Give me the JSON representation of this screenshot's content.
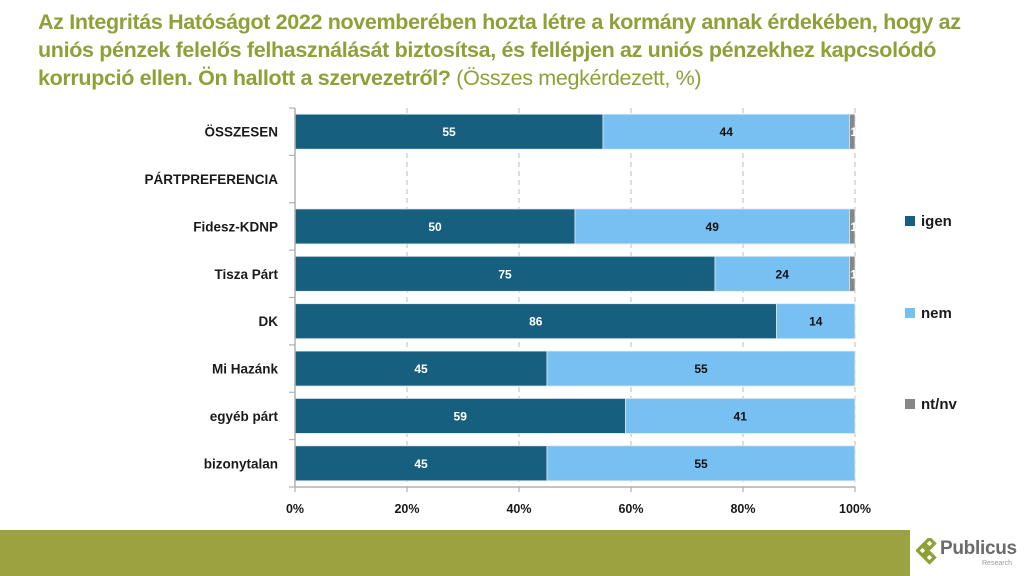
{
  "title": {
    "main": "Az Integritás Hatóságot 2022 novemberében hozta létre a kormány annak érdekében, hogy az uniós pénzek felelős felhasználását biztosítsa, és fellépjen az uniós pénzekhez kapcsolódó korrupció ellen. Ön hallott a szervezetről?",
    "subtitle": "(Összes megkérdezett, %)"
  },
  "colors": {
    "title": "#8fa037",
    "igen": "#175f7f",
    "nem": "#78c0f2",
    "ntnv": "#878787",
    "footer": "#9aa33f"
  },
  "chart_data": {
    "type": "bar",
    "orientation": "horizontal",
    "stacked": true,
    "title": "Az Integritás Hatóságot 2022 novemberében hozta létre a kormány annak érdekében, hogy az uniós pénzek felelős felhasználását biztosítsa, és fellépjen az uniós pénzekhez kapcsolódó korrupció ellen. Ön hallott a szervezetről? (Összes megkérdezett, %)",
    "categories": [
      "ÖSSZESEN",
      "PÁRTPREFERENCIA",
      "Fidesz-KDNP",
      "Tisza Párt",
      "DK",
      "Mi Hazánk",
      "egyéb párt",
      "bizonytalan"
    ],
    "series": [
      {
        "name": "igen",
        "color": "#175f7f",
        "values": [
          55,
          null,
          50,
          75,
          86,
          45,
          59,
          45
        ]
      },
      {
        "name": "nem",
        "color": "#78c0f2",
        "values": [
          44,
          null,
          49,
          24,
          14,
          55,
          41,
          55
        ]
      },
      {
        "name": "nt/nv",
        "color": "#878787",
        "values": [
          1,
          null,
          1,
          1,
          0,
          0,
          0,
          0
        ]
      }
    ],
    "xlim": [
      0,
      100
    ],
    "xticks": [
      "0%",
      "20%",
      "40%",
      "60%",
      "80%",
      "100%"
    ],
    "xtick_values": [
      0,
      20,
      40,
      60,
      80,
      100
    ],
    "xlabel": "",
    "ylabel": "",
    "grid": "vertical dashed",
    "legend": {
      "position": "right",
      "entries": [
        "igen",
        "nem",
        "nt/nv"
      ]
    }
  },
  "logo": {
    "name": "Publicus",
    "sub": "Research"
  }
}
